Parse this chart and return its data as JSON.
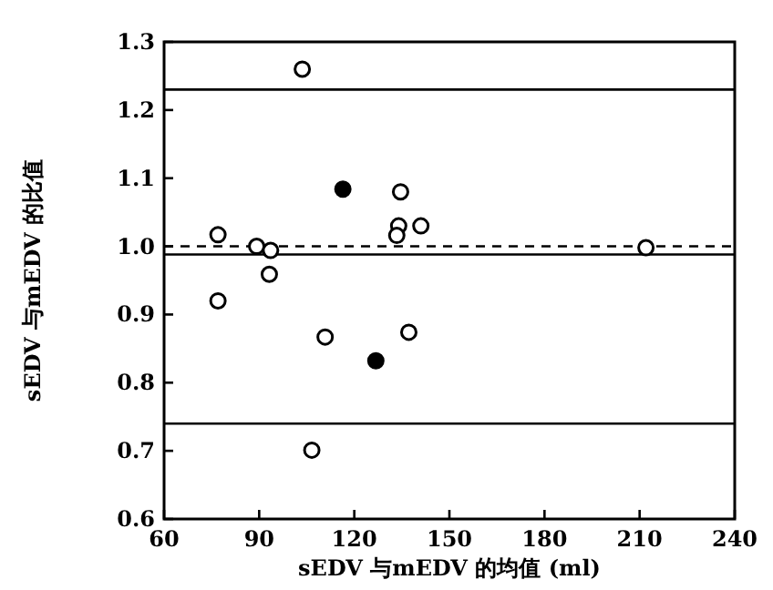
{
  "chart_data": {
    "type": "scatter",
    "xlabel": "sEDV 与mEDV 的均值 (ml)",
    "ylabel": "sEDV 与mEDV 的比值",
    "xlim": [
      60,
      240
    ],
    "xticks": [
      60,
      90,
      120,
      150,
      180,
      210,
      240
    ],
    "ylim": [
      0.6,
      1.3
    ],
    "yticks": [
      {
        "value": 0.6,
        "label": "0.6"
      },
      {
        "value": 0.7,
        "label": "0.7"
      },
      {
        "value": 0.8,
        "label": "0.8"
      },
      {
        "value": 0.9,
        "label": "0.9"
      },
      {
        "value": 1.0,
        "label": "1.0"
      },
      {
        "value": 1.1,
        "label": "1.1"
      },
      {
        "value": 1.2,
        "label": "1.2"
      },
      {
        "value": 1.3,
        "label": "1.3"
      }
    ],
    "marker": "circle",
    "grid": false,
    "series": [
      {
        "color": "#ffffff",
        "x": [
          103.6,
          134.6,
          134,
          141,
          133.4,
          77,
          89.2,
          93.6,
          93.2,
          77,
          110.8,
          137.2,
          106.6,
          212
        ],
        "values": [
          1.26,
          1.08,
          1.03,
          1.03,
          1.016,
          1.017,
          1.0,
          0.994,
          0.959,
          0.92,
          0.867,
          0.874,
          0.701,
          0.998
        ]
      },
      {
        "color": "#000000",
        "x": [
          116.4,
          126.8
        ],
        "values": [
          1.084,
          0.832
        ]
      }
    ],
    "ref_lines": [
      {
        "axis": "y",
        "value": 1.0,
        "line_style": "dashed"
      },
      {
        "axis": "y",
        "value": 0.988,
        "line_style": "solid"
      },
      {
        "axis": "y",
        "value": 1.23,
        "line_style": "solid"
      },
      {
        "axis": "y",
        "value": 0.74,
        "line_style": "solid"
      }
    ]
  }
}
